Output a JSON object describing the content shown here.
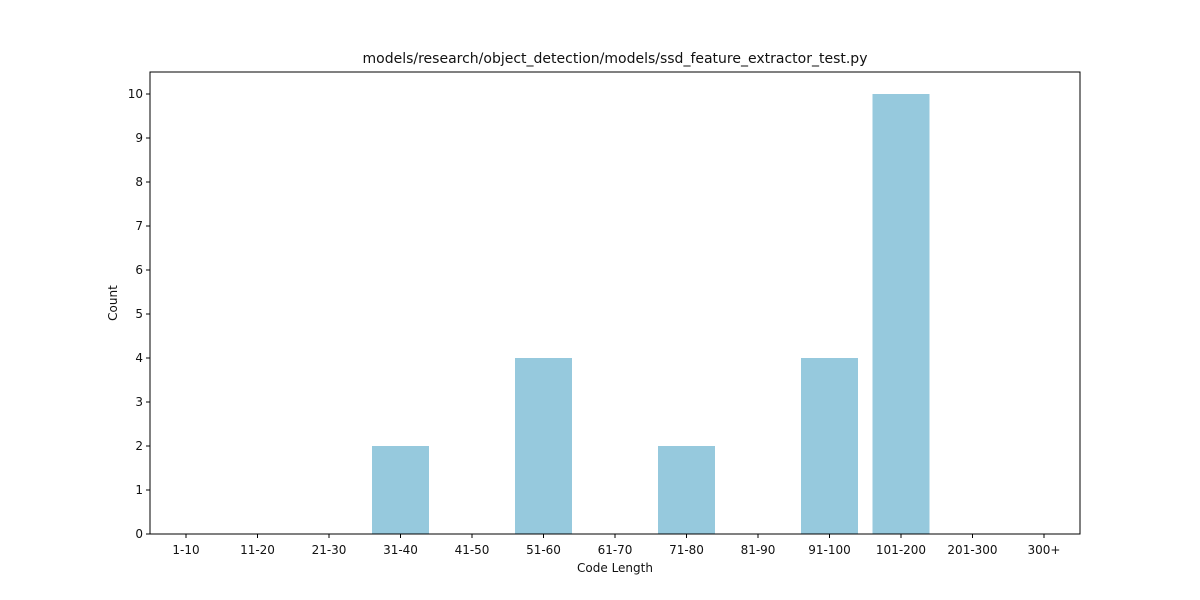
{
  "chart_data": {
    "type": "bar",
    "title": "models/research/object_detection/models/ssd_feature_extractor_test.py",
    "xlabel": "Code Length",
    "ylabel": "Count",
    "categories": [
      "1-10",
      "11-20",
      "21-30",
      "31-40",
      "41-50",
      "51-60",
      "61-70",
      "71-80",
      "81-90",
      "91-100",
      "101-200",
      "201-300",
      "300+"
    ],
    "values": [
      0,
      0,
      0,
      2,
      0,
      4,
      0,
      2,
      0,
      4,
      10,
      0,
      0
    ],
    "ylim": [
      0,
      10.5
    ],
    "yticks": [
      0,
      1,
      2,
      3,
      4,
      5,
      6,
      7,
      8,
      9,
      10
    ],
    "grid": false,
    "legend": false,
    "colors": {
      "bar": "#96c9dd",
      "axis": "#000000",
      "text": "#111111"
    }
  }
}
